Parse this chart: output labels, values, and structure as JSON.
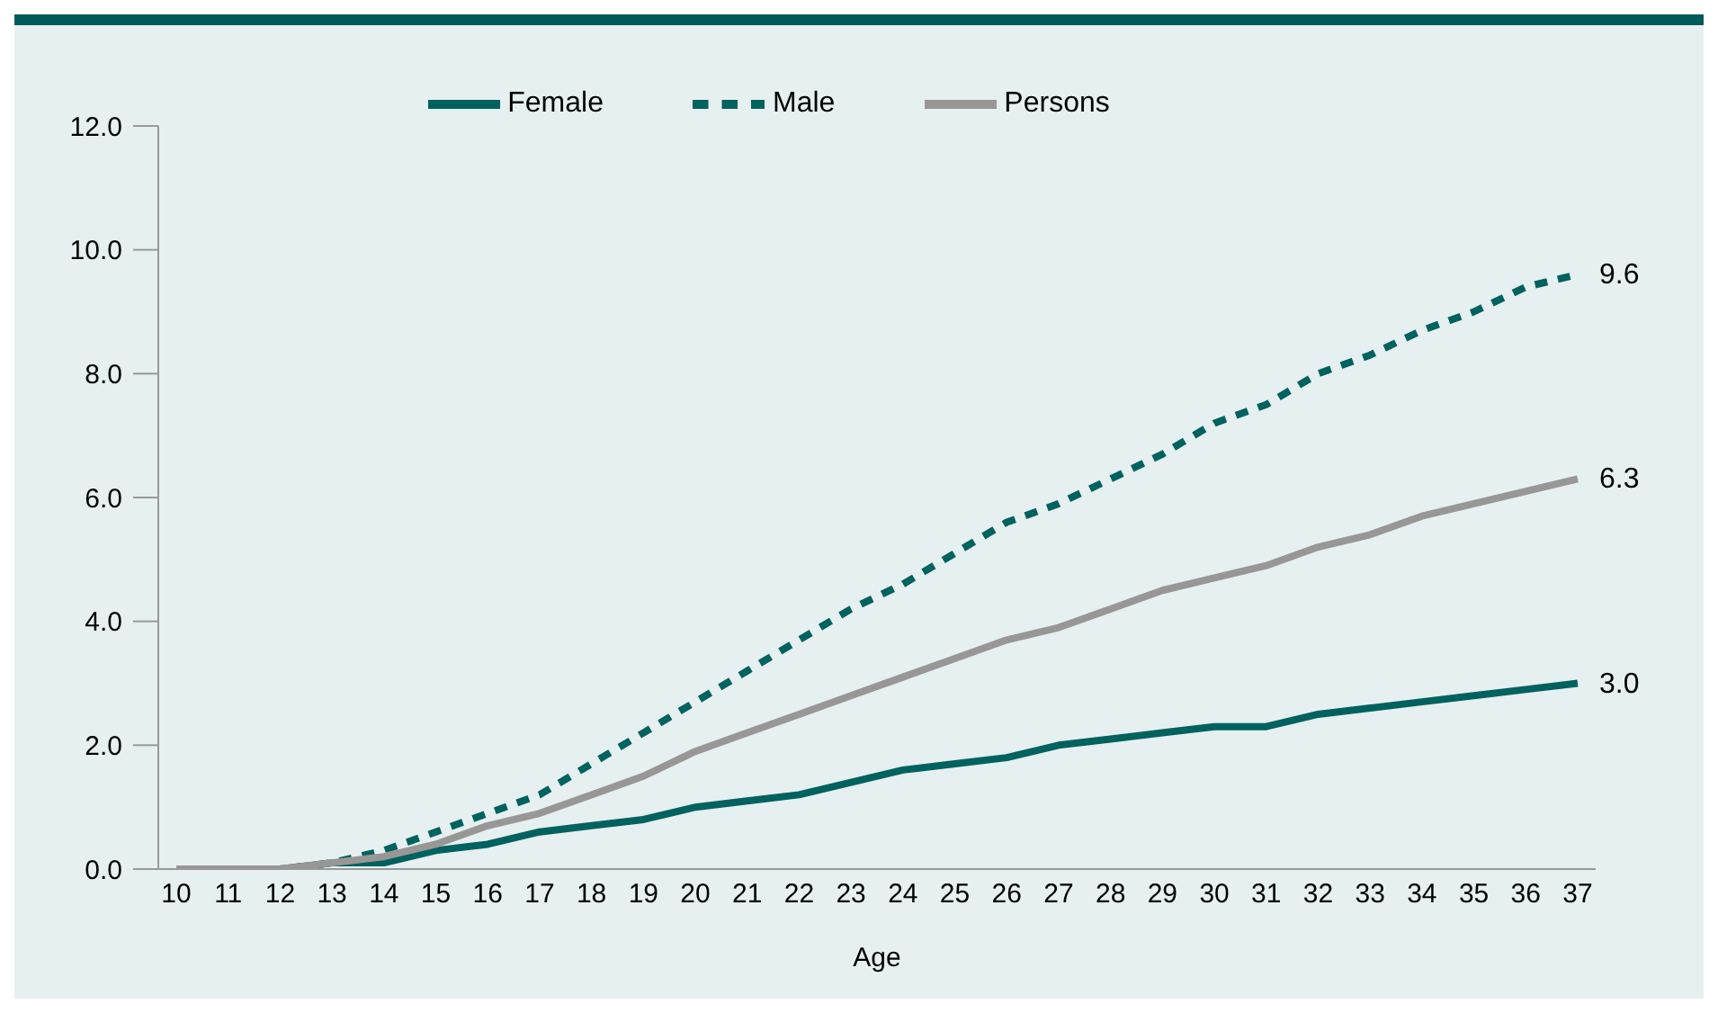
{
  "chart_data": {
    "type": "line",
    "xlabel": "Age",
    "categories": [
      "10",
      "11",
      "12",
      "13",
      "14",
      "15",
      "16",
      "17",
      "18",
      "19",
      "20",
      "21",
      "22",
      "23",
      "24",
      "25",
      "26",
      "27",
      "28",
      "29",
      "30",
      "31",
      "32",
      "33",
      "34",
      "35",
      "36",
      "37"
    ],
    "series": [
      {
        "name": "Female",
        "color": "#00625f",
        "line_style": "solid",
        "values": [
          0,
          0,
          0,
          0.1,
          0.1,
          0.3,
          0.4,
          0.6,
          0.7,
          0.8,
          1.0,
          1.1,
          1.2,
          1.4,
          1.6,
          1.7,
          1.8,
          2.0,
          2.1,
          2.2,
          2.3,
          2.3,
          2.5,
          2.6,
          2.7,
          2.8,
          2.9,
          3.0
        ],
        "value_labels": [
          null,
          null,
          null,
          null,
          null,
          null,
          null,
          null,
          null,
          null,
          null,
          null,
          null,
          null,
          null,
          null,
          null,
          null,
          null,
          null,
          null,
          null,
          null,
          null,
          null,
          null,
          null,
          "3.0"
        ]
      },
      {
        "name": "Male",
        "color": "#00625f",
        "line_style": "dashed",
        "values": [
          0,
          0,
          0,
          0.1,
          0.3,
          0.6,
          0.9,
          1.2,
          1.7,
          2.2,
          2.7,
          3.2,
          3.7,
          4.2,
          4.6,
          5.1,
          5.6,
          5.9,
          6.3,
          6.7,
          7.2,
          7.5,
          8.0,
          8.3,
          8.7,
          9.0,
          9.4,
          9.6
        ],
        "value_labels": [
          null,
          null,
          null,
          null,
          null,
          null,
          null,
          null,
          null,
          null,
          null,
          null,
          null,
          null,
          null,
          null,
          null,
          null,
          null,
          null,
          null,
          null,
          null,
          null,
          null,
          null,
          null,
          "9.6"
        ]
      },
      {
        "name": "Persons",
        "color": "#999696",
        "line_style": "solid",
        "values": [
          0,
          0,
          0,
          0.1,
          0.2,
          0.4,
          0.7,
          0.9,
          1.2,
          1.5,
          1.9,
          2.2,
          2.5,
          2.8,
          3.1,
          3.4,
          3.7,
          3.9,
          4.2,
          4.5,
          4.7,
          4.9,
          5.2,
          5.4,
          5.7,
          5.9,
          6.1,
          6.3
        ],
        "value_labels": [
          null,
          null,
          null,
          null,
          null,
          null,
          null,
          null,
          null,
          null,
          null,
          null,
          null,
          null,
          null,
          null,
          null,
          null,
          null,
          null,
          null,
          null,
          null,
          null,
          null,
          null,
          null,
          "6.3"
        ]
      }
    ],
    "ylim": [
      0,
      12
    ],
    "yticks": [
      {
        "value": 0,
        "label": "0.0"
      },
      {
        "value": 2,
        "label": "2.0"
      },
      {
        "value": 4,
        "label": "4.0"
      },
      {
        "value": 6,
        "label": "6.0"
      },
      {
        "value": 8,
        "label": "8.0"
      },
      {
        "value": 10,
        "label": "10.0"
      },
      {
        "value": 12,
        "label": "12.0"
      }
    ],
    "legend": "top",
    "grid": false,
    "marker": "none"
  }
}
